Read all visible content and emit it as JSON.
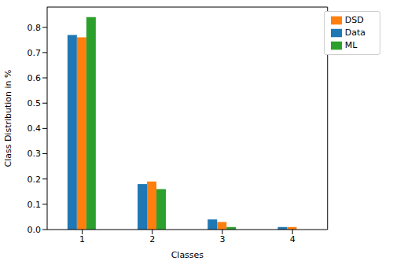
{
  "chart_data": {
    "type": "bar",
    "xlabel": "Classes",
    "ylabel": "Class Distribution in %",
    "categories": [
      "1",
      "2",
      "3",
      "4"
    ],
    "series": [
      {
        "name": "Data",
        "color": "#1f77b4",
        "values": [
          0.77,
          0.18,
          0.04,
          0.01
        ]
      },
      {
        "name": "DSD",
        "color": "#ff7f0e",
        "values": [
          0.76,
          0.19,
          0.03,
          0.01
        ]
      },
      {
        "name": "ML",
        "color": "#2ca02c",
        "values": [
          0.84,
          0.16,
          0.01,
          0
        ]
      }
    ],
    "ylim": [
      0,
      0.88
    ],
    "yticks": [
      {
        "value": 0,
        "label": "0.0"
      },
      0.1,
      0.2,
      0.3,
      0.4,
      0.5,
      0.6,
      0.7,
      0.8
    ],
    "grid": false,
    "legend": "upper right"
  }
}
